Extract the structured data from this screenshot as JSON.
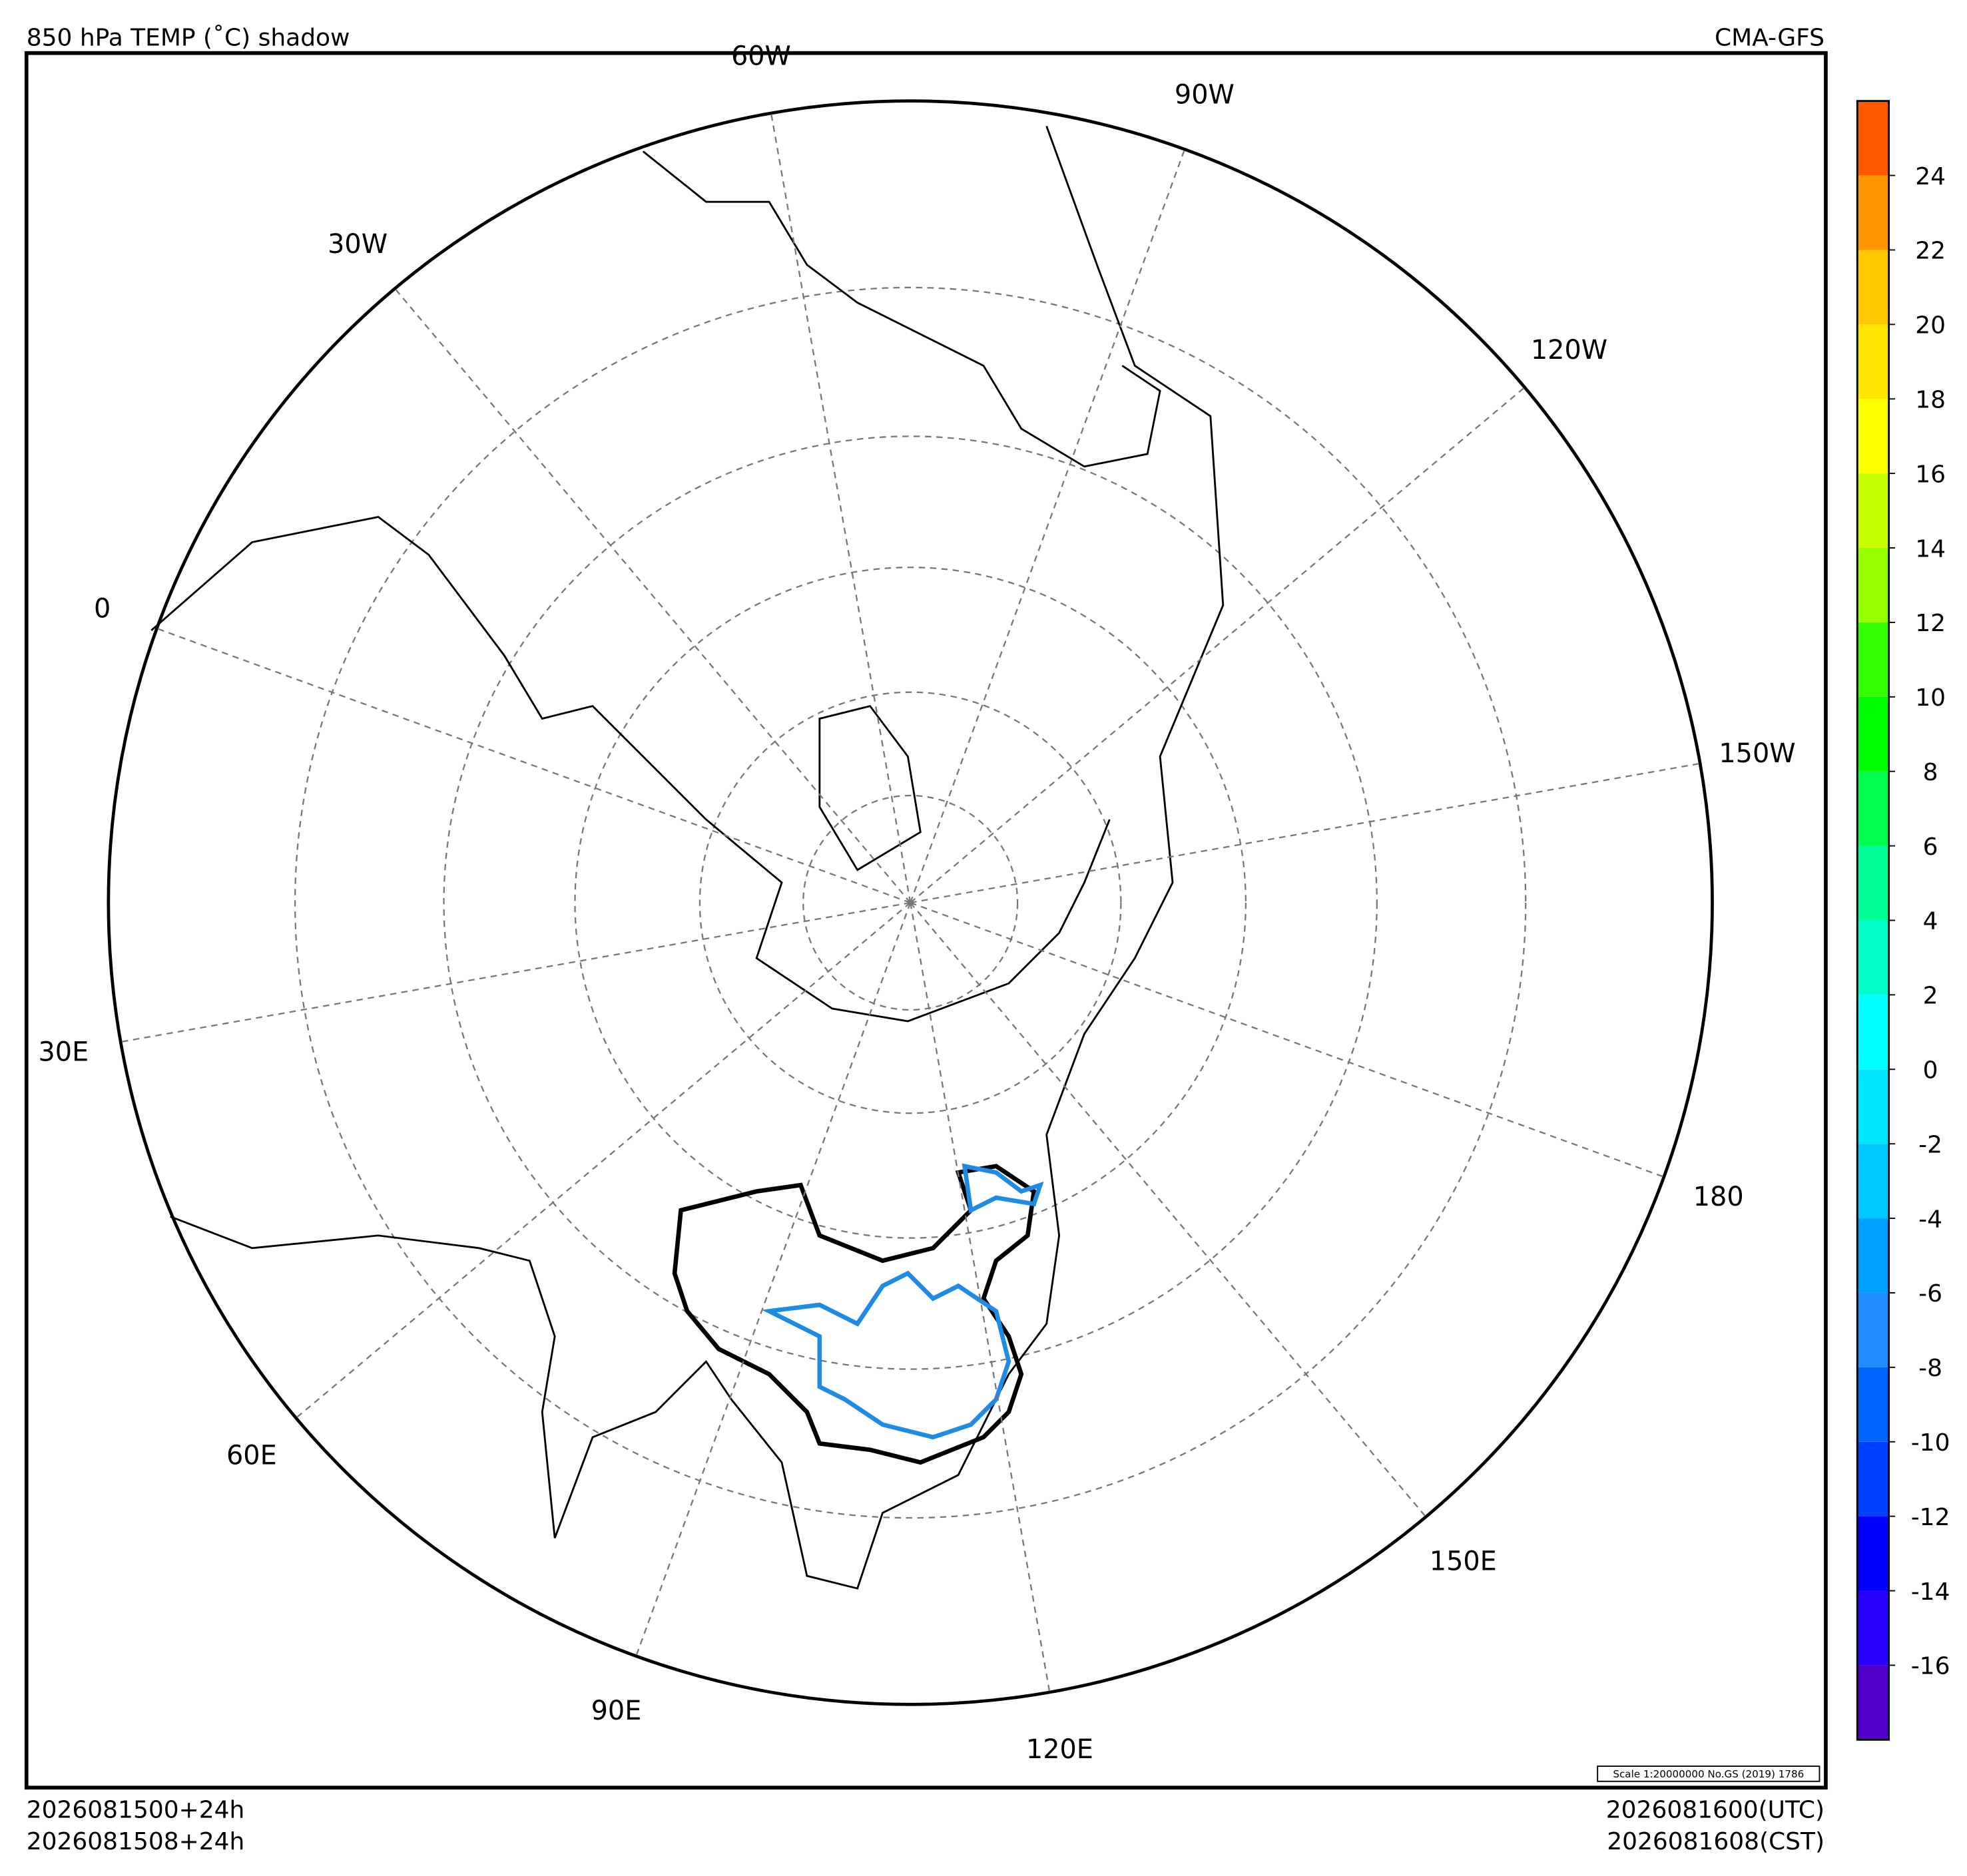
{
  "header": {
    "title": "850 hPa TEMP (˚C) shadow",
    "model": "CMA-GFS"
  },
  "footer": {
    "init_utc": "2026081500+24h",
    "init_cst": "2026081508+24h",
    "valid_utc": "2026081600(UTC)",
    "valid_cst": "2026081608(CST)"
  },
  "scale_note": "Scale 1:20000000 No.GS (2019) 1786",
  "meridians": [
    {
      "value": 0,
      "label": "0"
    },
    {
      "value": -30,
      "label": "30W"
    },
    {
      "value": -60,
      "label": "60W"
    },
    {
      "value": -90,
      "label": "90W"
    },
    {
      "value": -120,
      "label": "120W"
    },
    {
      "value": -150,
      "label": "150W"
    },
    {
      "value": 180,
      "label": "180"
    },
    {
      "value": 150,
      "label": "150E"
    },
    {
      "value": 120,
      "label": "120E"
    },
    {
      "value": 90,
      "label": "90E"
    },
    {
      "value": 60,
      "label": "60E"
    },
    {
      "value": 30,
      "label": "30E"
    }
  ],
  "colorbar": {
    "range": [
      -18,
      26
    ],
    "ticks": [
      -16,
      -14,
      -12,
      -10,
      -8,
      -6,
      -4,
      -2,
      0,
      2,
      4,
      6,
      8,
      10,
      12,
      14,
      16,
      18,
      20,
      22,
      24
    ],
    "colors": [
      "#5000c8",
      "#2800ff",
      "#0000ff",
      "#0040ff",
      "#0064ff",
      "#1e8cff",
      "#00a0ff",
      "#00c8ff",
      "#00e6ff",
      "#00ffff",
      "#00ffc8",
      "#00ff96",
      "#00ff50",
      "#00ff00",
      "#32ff00",
      "#96ff00",
      "#c8ff00",
      "#ffff00",
      "#ffe600",
      "#ffc800",
      "#ff9600",
      "#ff5a00"
    ]
  }
}
